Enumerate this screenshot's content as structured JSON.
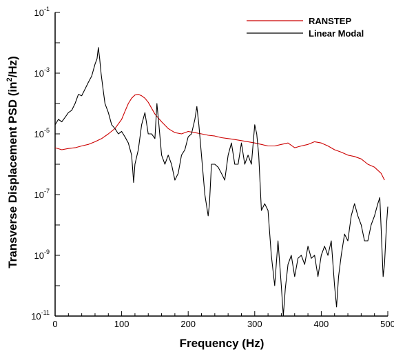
{
  "chart_data": {
    "type": "line",
    "xlabel": "Frequency (Hz)",
    "ylabel": {
      "prefix": "Transverse Displacement PSD (in",
      "sup": "2",
      "suffix": "/Hz)"
    },
    "xlim": [
      0,
      500
    ],
    "ylim": [
      1e-11,
      0.1
    ],
    "yscale": "log",
    "grid": false,
    "legend_position": "top-right",
    "x_ticks": [
      0,
      100,
      200,
      300,
      400,
      500
    ],
    "x_tick_labels": [
      "0",
      "100",
      "200",
      "300",
      "400",
      "500"
    ],
    "y_ticks": [
      {
        "value": 0.1,
        "base": "10",
        "exp": "-1"
      },
      {
        "value": 0.001,
        "base": "10",
        "exp": "-3"
      },
      {
        "value": 1e-05,
        "base": "10",
        "exp": "-5"
      },
      {
        "value": 1e-07,
        "base": "10",
        "exp": "-7"
      },
      {
        "value": 1e-09,
        "base": "10",
        "exp": "-9"
      },
      {
        "value": 1e-11,
        "base": "10",
        "exp": "-11"
      }
    ],
    "series": [
      {
        "name": "RANSTEP",
        "color": "#cc0000",
        "x": [
          0,
          10,
          20,
          30,
          40,
          50,
          60,
          70,
          80,
          90,
          100,
          105,
          110,
          115,
          120,
          125,
          130,
          135,
          140,
          145,
          150,
          160,
          170,
          180,
          190,
          200,
          210,
          220,
          230,
          240,
          250,
          260,
          270,
          280,
          290,
          300,
          310,
          320,
          330,
          340,
          350,
          360,
          370,
          380,
          390,
          400,
          410,
          420,
          430,
          440,
          450,
          460,
          470,
          480,
          490,
          495
        ],
        "y": [
          3.5e-06,
          3e-06,
          3.3e-06,
          3.5e-06,
          4e-06,
          4.5e-06,
          5.5e-06,
          7e-06,
          1e-05,
          1.5e-05,
          3e-05,
          5.5e-05,
          0.0001,
          0.00015,
          0.00019,
          0.0002,
          0.00018,
          0.00015,
          0.00011,
          7e-05,
          4.5e-05,
          2.5e-05,
          1.5e-05,
          1.1e-05,
          1e-05,
          1.2e-05,
          1.1e-05,
          1e-05,
          9e-06,
          8.5e-06,
          7.5e-06,
          7e-06,
          6.5e-06,
          6e-06,
          5.5e-06,
          5e-06,
          4.5e-06,
          4e-06,
          4e-06,
          4.5e-06,
          5e-06,
          3.5e-06,
          4e-06,
          4.5e-06,
          5.5e-06,
          5e-06,
          4e-06,
          3e-06,
          2.5e-06,
          2e-06,
          1.8e-06,
          1.5e-06,
          1e-06,
          8e-07,
          5e-07,
          3e-07
        ]
      },
      {
        "name": "Linear Modal",
        "color": "#000000",
        "x": [
          0,
          5,
          10,
          15,
          20,
          25,
          30,
          35,
          40,
          45,
          50,
          55,
          60,
          63,
          65,
          67,
          69,
          72,
          75,
          80,
          85,
          90,
          95,
          100,
          105,
          110,
          115,
          118,
          120,
          125,
          130,
          135,
          140,
          145,
          150,
          153,
          156,
          160,
          165,
          170,
          175,
          180,
          185,
          190,
          195,
          200,
          205,
          210,
          213,
          216,
          220,
          225,
          230,
          232,
          235,
          240,
          245,
          250,
          255,
          260,
          265,
          270,
          275,
          280,
          285,
          290,
          295,
          300,
          303,
          306,
          310,
          315,
          320,
          325,
          330,
          335,
          340,
          343,
          346,
          350,
          355,
          360,
          365,
          370,
          375,
          380,
          385,
          390,
          395,
          400,
          405,
          410,
          415,
          420,
          423,
          426,
          430,
          435,
          440,
          445,
          450,
          455,
          460,
          465,
          470,
          475,
          480,
          485,
          488,
          490,
          493,
          495,
          498,
          500
        ],
        "y": [
          2e-05,
          3e-05,
          2.5e-05,
          3.5e-05,
          5e-05,
          6e-05,
          0.0001,
          0.0002,
          0.00018,
          0.0003,
          0.0005,
          0.0008,
          0.002,
          0.003,
          0.007,
          0.003,
          0.001,
          0.0003,
          0.0001,
          5e-05,
          2e-05,
          1.5e-05,
          1e-05,
          1.2e-05,
          8e-06,
          5e-06,
          2e-06,
          2.5e-07,
          1e-06,
          3e-06,
          2e-05,
          5e-05,
          1e-05,
          1e-05,
          7e-06,
          0.0001,
          2e-05,
          2e-06,
          1e-06,
          2e-06,
          1e-06,
          3e-07,
          5e-07,
          2e-06,
          3e-06,
          8e-06,
          1e-05,
          3e-05,
          8e-05,
          2e-05,
          2e-06,
          1e-07,
          2e-08,
          5e-08,
          1e-06,
          1e-06,
          8e-07,
          5e-07,
          3e-07,
          2e-06,
          5e-06,
          1e-06,
          1e-06,
          5e-06,
          1e-06,
          2e-06,
          1e-06,
          2e-05,
          1e-05,
          2e-06,
          3e-08,
          5e-08,
          3e-08,
          1e-09,
          1e-10,
          3e-09,
          1e-10,
          1e-11,
          8e-11,
          5e-10,
          1e-09,
          2e-10,
          8e-10,
          1e-09,
          5e-10,
          2e-09,
          8e-10,
          1e-09,
          2e-10,
          1e-09,
          2e-09,
          1e-09,
          3e-09,
          1e-10,
          2e-11,
          2e-10,
          1e-09,
          5e-09,
          3e-09,
          2e-08,
          5e-08,
          2e-08,
          1e-08,
          3e-09,
          3e-09,
          1e-08,
          2e-08,
          5e-08,
          8e-08,
          8e-09,
          2e-10,
          5e-10,
          1e-08,
          4e-08
        ]
      }
    ]
  }
}
